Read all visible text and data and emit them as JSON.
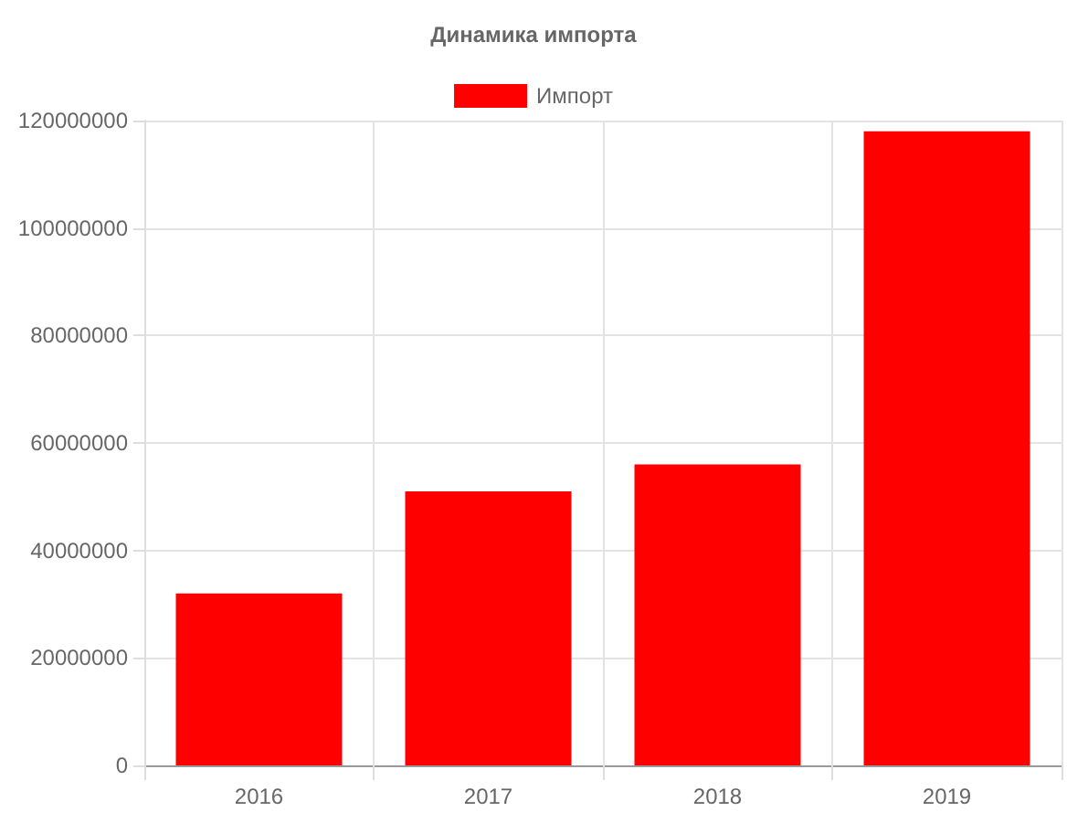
{
  "chart_data": {
    "type": "bar",
    "title": "Динамика импорта",
    "categories": [
      "2016",
      "2017",
      "2018",
      "2019"
    ],
    "series": [
      {
        "name": "Импорт",
        "color": "#ff0000",
        "values": [
          32000000,
          51000000,
          56000000,
          118000000
        ]
      }
    ],
    "ylim": [
      0,
      120000000
    ],
    "yticks": [
      0,
      20000000,
      40000000,
      60000000,
      80000000,
      100000000,
      120000000
    ],
    "grid": true,
    "legend": "top"
  }
}
